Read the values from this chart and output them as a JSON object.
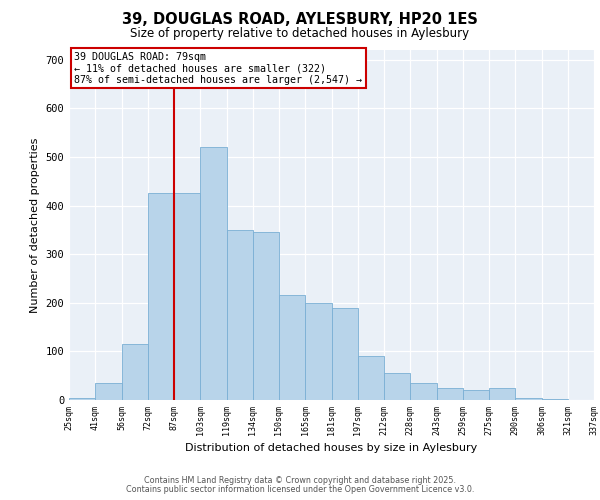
{
  "title_line1": "39, DOUGLAS ROAD, AYLESBURY, HP20 1ES",
  "title_line2": "Size of property relative to detached houses in Aylesbury",
  "xlabel": "Distribution of detached houses by size in Aylesbury",
  "ylabel": "Number of detached properties",
  "bar_values": [
    5,
    35,
    115,
    425,
    425,
    520,
    350,
    345,
    215,
    200,
    190,
    90,
    55,
    35,
    25,
    20,
    25,
    5,
    3,
    1
  ],
  "bin_labels": [
    "25sqm",
    "41sqm",
    "56sqm",
    "72sqm",
    "87sqm",
    "103sqm",
    "119sqm",
    "134sqm",
    "150sqm",
    "165sqm",
    "181sqm",
    "197sqm",
    "212sqm",
    "228sqm",
    "243sqm",
    "259sqm",
    "275sqm",
    "290sqm",
    "306sqm",
    "321sqm",
    "337sqm"
  ],
  "bar_color": "#b8d4ea",
  "bar_edge_color": "#7aafd4",
  "vline_color": "#cc0000",
  "vline_bin_index": 3,
  "annotation_text": "39 DOUGLAS ROAD: 79sqm\n← 11% of detached houses are smaller (322)\n87% of semi-detached houses are larger (2,547) →",
  "annotation_box_color": "#ffffff",
  "annotation_box_edge": "#cc0000",
  "ylim": [
    0,
    720
  ],
  "yticks": [
    0,
    100,
    200,
    300,
    400,
    500,
    600,
    700
  ],
  "bg_color": "#eaf0f7",
  "footer_line1": "Contains HM Land Registry data © Crown copyright and database right 2025.",
  "footer_line2": "Contains public sector information licensed under the Open Government Licence v3.0."
}
